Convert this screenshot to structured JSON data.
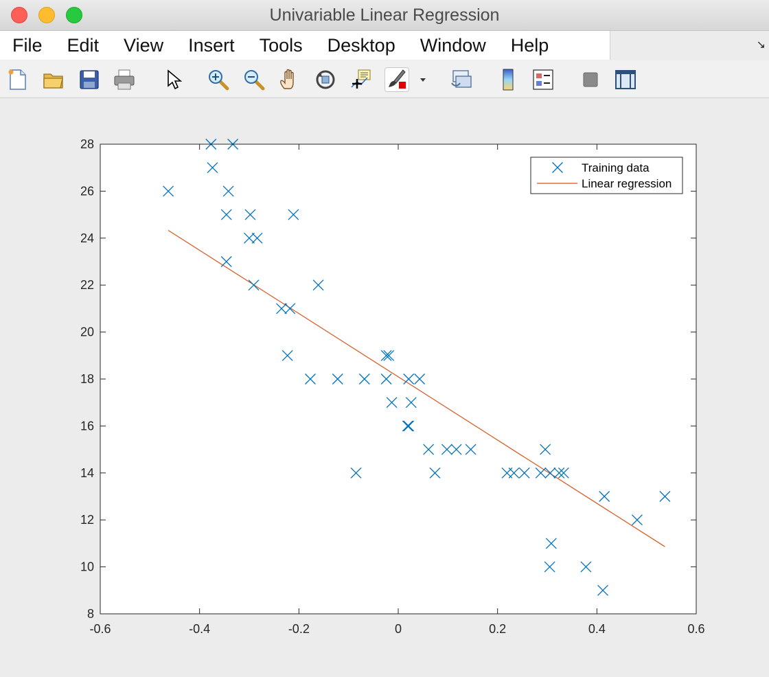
{
  "window": {
    "title": "Univariable Linear Regression"
  },
  "menu": {
    "items": [
      {
        "id": "file",
        "label": "File"
      },
      {
        "id": "edit",
        "label": "Edit"
      },
      {
        "id": "view",
        "label": "View"
      },
      {
        "id": "insert",
        "label": "Insert"
      },
      {
        "id": "tools",
        "label": "Tools"
      },
      {
        "id": "desktop",
        "label": "Desktop"
      },
      {
        "id": "window",
        "label": "Window"
      },
      {
        "id": "help",
        "label": "Help"
      }
    ]
  },
  "toolbar": {
    "buttons": [
      {
        "icon": "new-figure-icon"
      },
      {
        "icon": "open-file-icon"
      },
      {
        "icon": "save-icon"
      },
      {
        "icon": "print-icon"
      },
      {
        "icon": "edit-plot-arrow-icon"
      },
      {
        "icon": "zoom-in-icon"
      },
      {
        "icon": "zoom-out-icon"
      },
      {
        "icon": "pan-hand-icon"
      },
      {
        "icon": "rotate-3d-icon"
      },
      {
        "icon": "data-cursor-icon"
      },
      {
        "icon": "brush-icon"
      },
      {
        "icon": "link-plot-icon"
      },
      {
        "icon": "colorbar-icon"
      },
      {
        "icon": "legend-icon"
      },
      {
        "icon": "hide-plot-tools-icon"
      },
      {
        "icon": "show-plot-tools-icon"
      }
    ]
  },
  "chart_data": {
    "type": "scatter",
    "xlim": [
      -0.6,
      0.6
    ],
    "ylim": [
      8,
      28
    ],
    "xticks": [
      "-0.6",
      "-0.4",
      "-0.2",
      "0",
      "0.2",
      "0.4",
      "0.6"
    ],
    "yticks": [
      "8",
      "10",
      "12",
      "14",
      "16",
      "18",
      "20",
      "22",
      "24",
      "26",
      "28"
    ],
    "legend": {
      "position": "top-right",
      "entries": [
        "Training data",
        "Linear regression"
      ]
    },
    "colors": {
      "data": "#0072BD",
      "line": "#D95319"
    },
    "series": [
      {
        "name": "Training data",
        "marker": "x",
        "points": [
          [
            -0.463,
            26
          ],
          [
            -0.377,
            28
          ],
          [
            -0.333,
            28
          ],
          [
            -0.374,
            27
          ],
          [
            -0.342,
            26
          ],
          [
            -0.346,
            25
          ],
          [
            -0.298,
            25
          ],
          [
            -0.211,
            25
          ],
          [
            -0.3,
            24
          ],
          [
            -0.284,
            24
          ],
          [
            -0.346,
            23
          ],
          [
            -0.291,
            22
          ],
          [
            -0.161,
            22
          ],
          [
            -0.235,
            21
          ],
          [
            -0.218,
            21
          ],
          [
            -0.223,
            19
          ],
          [
            -0.024,
            19
          ],
          [
            -0.019,
            19
          ],
          [
            -0.177,
            18
          ],
          [
            -0.122,
            18
          ],
          [
            -0.068,
            18
          ],
          [
            -0.024,
            18
          ],
          [
            0.021,
            18
          ],
          [
            0.043,
            18
          ],
          [
            -0.013,
            17
          ],
          [
            0.026,
            17
          ],
          [
            0.019,
            16
          ],
          [
            0.021,
            16
          ],
          [
            0.061,
            15
          ],
          [
            0.098,
            15
          ],
          [
            0.117,
            15
          ],
          [
            0.146,
            15
          ],
          [
            0.296,
            15
          ],
          [
            -0.085,
            14
          ],
          [
            0.074,
            14
          ],
          [
            0.219,
            14
          ],
          [
            0.233,
            14
          ],
          [
            0.254,
            14
          ],
          [
            0.287,
            14
          ],
          [
            0.306,
            14
          ],
          [
            0.324,
            14
          ],
          [
            0.333,
            14
          ],
          [
            0.415,
            13
          ],
          [
            0.537,
            13
          ],
          [
            0.481,
            12
          ],
          [
            0.308,
            11
          ],
          [
            0.305,
            10
          ],
          [
            0.378,
            10
          ],
          [
            0.412,
            9
          ]
        ]
      },
      {
        "name": "Linear regression",
        "type": "line",
        "points": [
          [
            -0.463,
            24.33
          ],
          [
            0.537,
            10.86
          ]
        ]
      }
    ]
  }
}
